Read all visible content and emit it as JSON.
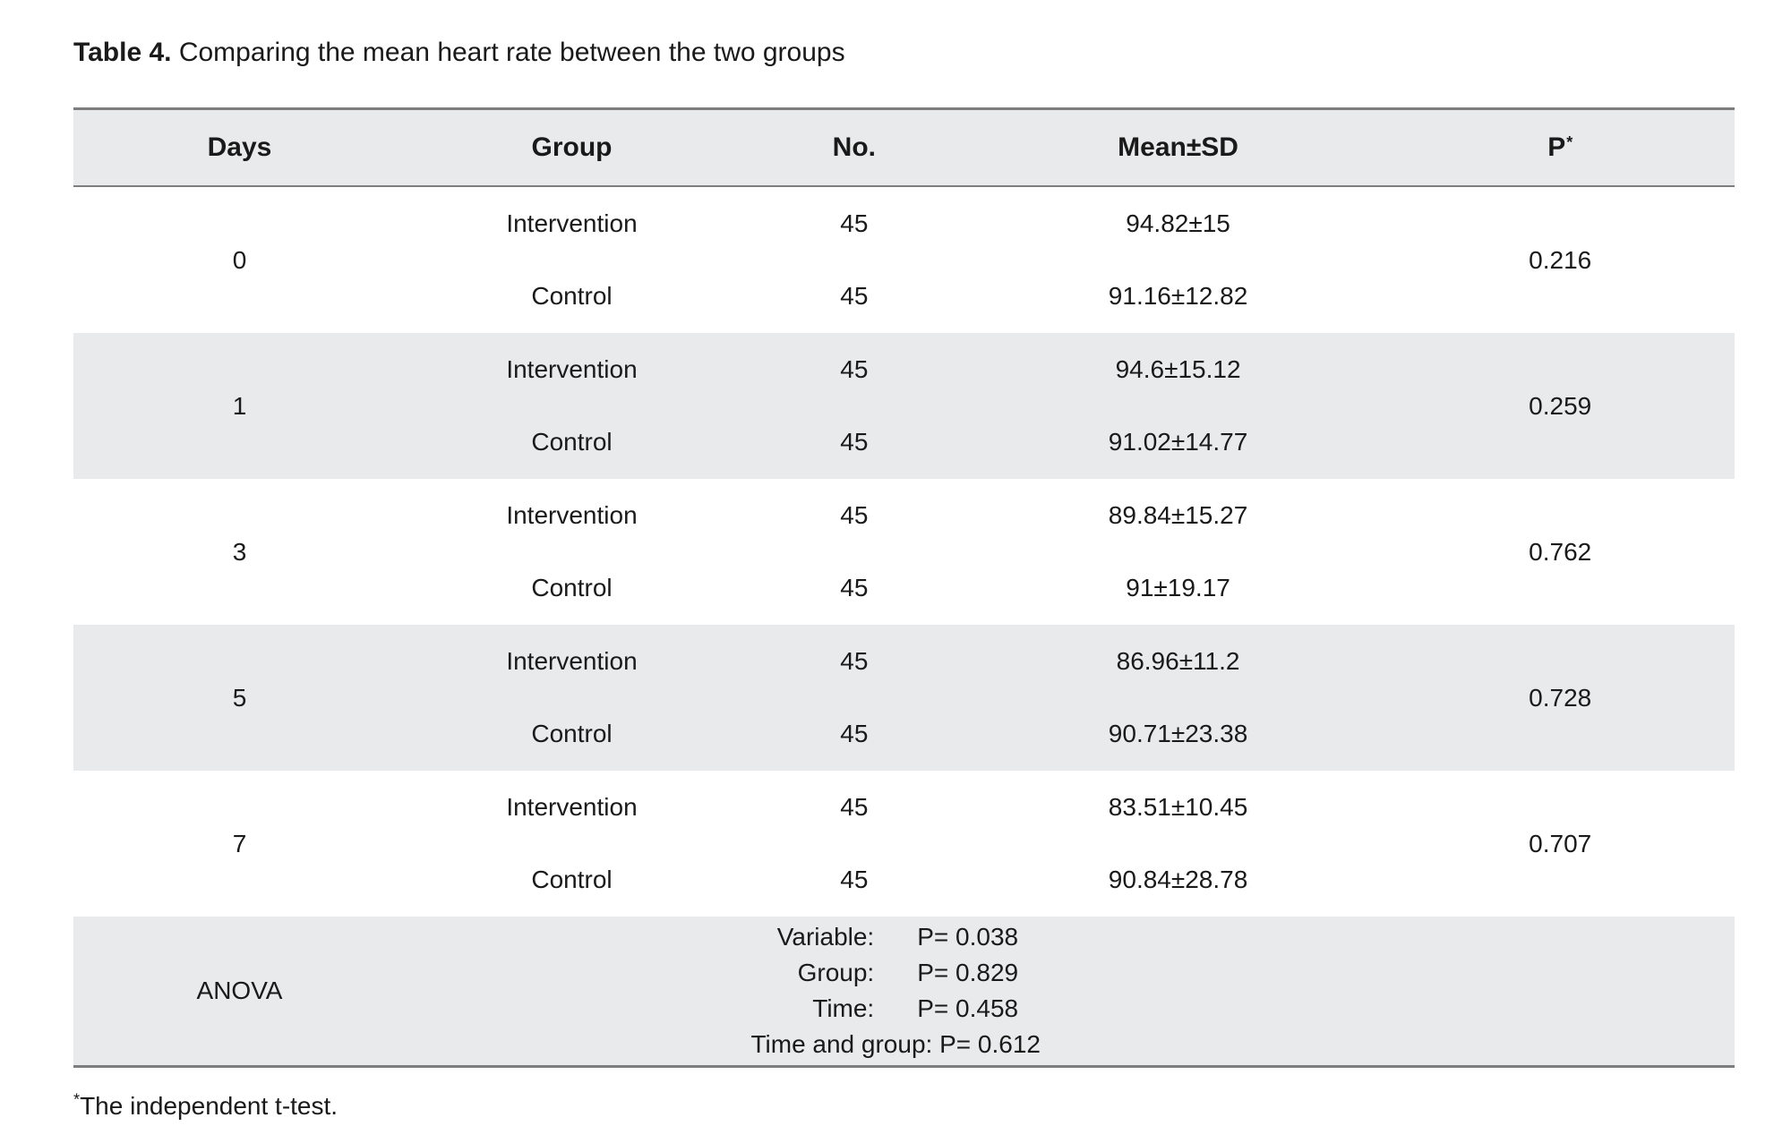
{
  "caption": {
    "label": "Table 4.",
    "text": "Comparing the mean heart rate between the two groups"
  },
  "table": {
    "columns": [
      {
        "label": "Days"
      },
      {
        "label": "Group"
      },
      {
        "label": "No."
      },
      {
        "label": "Mean±SD"
      },
      {
        "label": "P",
        "sup": "*"
      }
    ],
    "rows": [
      {
        "day": "0",
        "p": "0.216",
        "groups": [
          {
            "group": "Intervention",
            "n": "45",
            "mean_sd": "94.82±15"
          },
          {
            "group": "Control",
            "n": "45",
            "mean_sd": "91.16±12.82"
          }
        ]
      },
      {
        "day": "1",
        "p": "0.259",
        "groups": [
          {
            "group": "Intervention",
            "n": "45",
            "mean_sd": "94.6±15.12"
          },
          {
            "group": "Control",
            "n": "45",
            "mean_sd": "91.02±14.77"
          }
        ]
      },
      {
        "day": "3",
        "p": "0.762",
        "groups": [
          {
            "group": "Intervention",
            "n": "45",
            "mean_sd": "89.84±15.27"
          },
          {
            "group": "Control",
            "n": "45",
            "mean_sd": "91±19.17"
          }
        ]
      },
      {
        "day": "5",
        "p": "0.728",
        "groups": [
          {
            "group": "Intervention",
            "n": "45",
            "mean_sd": "86.96±11.2"
          },
          {
            "group": "Control",
            "n": "45",
            "mean_sd": "90.71±23.38"
          }
        ]
      },
      {
        "day": "7",
        "p": "0.707",
        "groups": [
          {
            "group": "Intervention",
            "n": "45",
            "mean_sd": "83.51±10.45"
          },
          {
            "group": "Control",
            "n": "45",
            "mean_sd": "90.84±28.78"
          }
        ]
      }
    ],
    "anova": {
      "label": "ANOVA",
      "lines": [
        {
          "label": "Variable:",
          "value": "P= 0.038"
        },
        {
          "label": "Group:",
          "value": "P= 0.829"
        },
        {
          "label": "Time:",
          "value": "P= 0.458"
        }
      ],
      "combined_line": "Time and group: P= 0.612"
    }
  },
  "footnote": {
    "sup": "*",
    "text": "The independent t-test."
  },
  "colors": {
    "shaded_band": "#e9eaeb",
    "border": "#7d7d7d",
    "text": "#1a1a1a"
  }
}
